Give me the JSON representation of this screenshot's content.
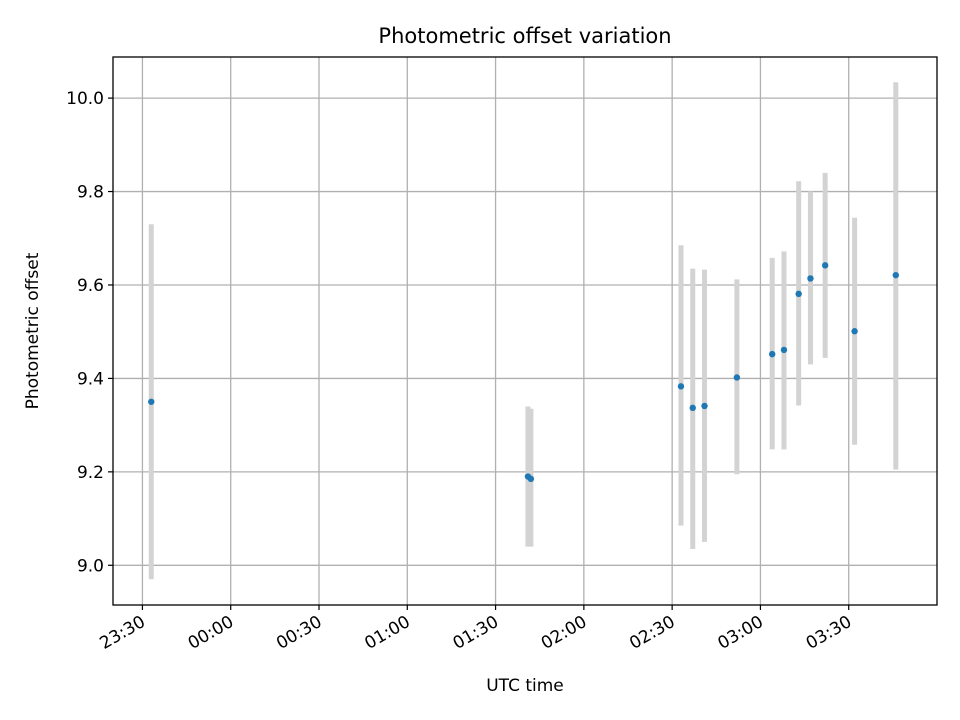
{
  "chart_data": {
    "type": "scatter",
    "title": "Photometric offset variation",
    "xlabel": "UTC time",
    "ylabel": "Photometric offset",
    "x_axis_type": "time",
    "xlim": [
      "23:20",
      "04:00"
    ],
    "ylim": [
      8.915,
      10.088
    ],
    "xticks": [
      "23:30",
      "00:00",
      "00:30",
      "01:00",
      "01:30",
      "02:00",
      "02:30",
      "03:00",
      "03:30"
    ],
    "yticks": [
      9.0,
      9.2,
      9.4,
      9.6,
      9.8,
      10.0
    ],
    "ytick_labels": [
      "9.0",
      "9.2",
      "9.4",
      "9.6",
      "9.8",
      "10.0"
    ],
    "grid": true,
    "series": [
      {
        "marker_color": "#1f77b4",
        "errorbar_color": "#d3d3d3",
        "points": [
          {
            "x": "23:33",
            "y": 9.35,
            "err_low": 8.97,
            "err_high": 9.73
          },
          {
            "x": "01:41",
            "y": 9.19,
            "err_low": 9.04,
            "err_high": 9.34
          },
          {
            "x": "01:42",
            "y": 9.185,
            "err_low": 9.04,
            "err_high": 9.335
          },
          {
            "x": "02:33",
            "y": 9.383,
            "err_low": 9.085,
            "err_high": 9.685
          },
          {
            "x": "02:37",
            "y": 9.337,
            "err_low": 9.035,
            "err_high": 9.635
          },
          {
            "x": "02:41",
            "y": 9.341,
            "err_low": 9.05,
            "err_high": 9.633
          },
          {
            "x": "02:52",
            "y": 9.402,
            "err_low": 9.195,
            "err_high": 9.612
          },
          {
            "x": "03:04",
            "y": 9.452,
            "err_low": 9.248,
            "err_high": 9.658
          },
          {
            "x": "03:08",
            "y": 9.461,
            "err_low": 9.248,
            "err_high": 9.672
          },
          {
            "x": "03:13",
            "y": 9.581,
            "err_low": 9.342,
            "err_high": 9.822
          },
          {
            "x": "03:17",
            "y": 9.614,
            "err_low": 9.43,
            "err_high": 9.8
          },
          {
            "x": "03:22",
            "y": 9.642,
            "err_low": 9.444,
            "err_high": 9.84
          },
          {
            "x": "03:32",
            "y": 9.501,
            "err_low": 9.258,
            "err_high": 9.744
          },
          {
            "x": "03:46",
            "y": 9.621,
            "err_low": 9.205,
            "err_high": 10.034
          }
        ]
      }
    ]
  }
}
